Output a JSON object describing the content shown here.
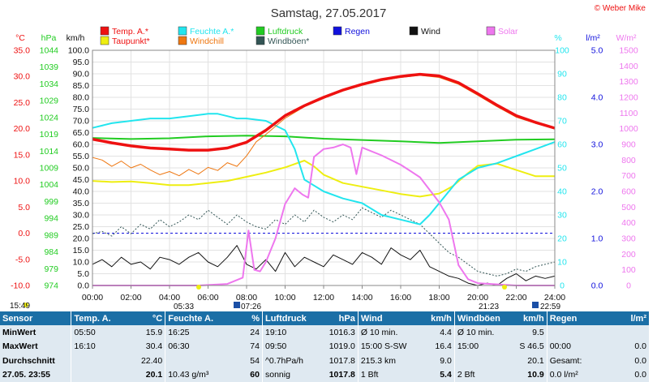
{
  "header": {
    "title": "Samstag, 27.05.2017",
    "credit": "© Weber Mike"
  },
  "legend": [
    {
      "label": "Temp. A.*",
      "color": "#ee1111"
    },
    {
      "label": "Feuchte A.*",
      "color": "#22e5ee"
    },
    {
      "label": "Luftdruck",
      "color": "#22cc22"
    },
    {
      "label": "Regen",
      "color": "#1111dd"
    },
    {
      "label": "Wind",
      "color": "#111111"
    },
    {
      "label": "Solar",
      "color": "#ee77ee"
    },
    {
      "label": "Taupunkt*",
      "color": "#eeee11"
    },
    {
      "label": "Windchill",
      "color": "#ee7711"
    },
    {
      "label": "Windböen*",
      "color": "#335555"
    }
  ],
  "axis_units": {
    "temp": "°C",
    "pressure": "hPa",
    "speed": "km/h",
    "humidity": "%",
    "rain": "l/m²",
    "solar": "W/m²"
  },
  "sun": {
    "sunrise_time": "05:33",
    "sunset_time": "21:23",
    "moonrise_time": "07:26",
    "moonset_time": "22:59",
    "daylight_start": "15:49"
  },
  "chart_data": {
    "type": "line",
    "x_ticks": [
      "00:00",
      "02:00",
      "04:00",
      "06:00",
      "08:00",
      "10:00",
      "12:00",
      "14:00",
      "16:00",
      "18:00",
      "20:00",
      "22:00",
      "24:00"
    ],
    "axes": {
      "temp": {
        "label": "°C",
        "range": [
          -10,
          35
        ],
        "ticks": [
          "35.0",
          "30.0",
          "25.0",
          "20.0",
          "15.0",
          "10.0",
          "5.0",
          "0.0",
          "-5.0",
          "-10.0"
        ]
      },
      "pressure": {
        "label": "hPa",
        "range": [
          974,
          1044
        ],
        "ticks": [
          "1044",
          "1039",
          "1034",
          "1029",
          "1024",
          "1019",
          "1014",
          "1009",
          "1004",
          "999",
          "994",
          "989",
          "984",
          "979",
          "974"
        ]
      },
      "speed": {
        "label": "km/h",
        "range": [
          0,
          100
        ],
        "ticks": [
          "100.0",
          "95.0",
          "90.0",
          "85.0",
          "80.0",
          "75.0",
          "70.0",
          "65.0",
          "60.0",
          "55.0",
          "50.0",
          "45.0",
          "40.0",
          "35.0",
          "30.0",
          "25.0",
          "20.0",
          "15.0",
          "10.0",
          "5.0",
          "0.0"
        ]
      },
      "humidity": {
        "label": "%",
        "range": [
          0,
          100
        ],
        "ticks": [
          "100",
          "90",
          "80",
          "70",
          "60",
          "50",
          "40",
          "30",
          "20",
          "10",
          "0"
        ]
      },
      "rain": {
        "label": "l/m²",
        "range": [
          0,
          5
        ],
        "ticks": [
          "5.0",
          "4.0",
          "3.0",
          "2.0",
          "1.0",
          "0.0"
        ]
      },
      "solar": {
        "label": "W/m²",
        "range": [
          0,
          1500
        ],
        "ticks": [
          "1500",
          "1400",
          "1300",
          "1200",
          "1100",
          "1000",
          "900",
          "800",
          "700",
          "600",
          "500",
          "400",
          "300",
          "200",
          "100",
          "0"
        ]
      }
    },
    "grid": true,
    "series": [
      {
        "name": "Temp. A.*",
        "axis": "temp",
        "color": "#ee1111",
        "width": 3.5,
        "x": [
          0,
          1,
          2,
          3,
          4,
          5,
          6,
          7,
          8,
          9,
          10,
          11,
          12,
          13,
          14,
          15,
          16,
          17,
          18,
          19,
          20,
          21,
          22,
          23,
          24
        ],
        "values": [
          18.0,
          17.3,
          16.7,
          16.3,
          16.1,
          15.9,
          15.9,
          16.3,
          17.4,
          19.7,
          22.5,
          24.4,
          26.0,
          27.4,
          28.5,
          29.4,
          30.0,
          30.4,
          30.1,
          28.8,
          26.7,
          24.5,
          22.5,
          21.2,
          20.1
        ]
      },
      {
        "name": "Windchill",
        "axis": "temp",
        "color": "#ee7711",
        "width": 1,
        "x": [
          0,
          0.5,
          1,
          1.5,
          2,
          2.5,
          3,
          3.5,
          4,
          4.5,
          5,
          5.5,
          6,
          6.5,
          7,
          7.5,
          8,
          8.5,
          9,
          10,
          11,
          12,
          13,
          14,
          15,
          16,
          17,
          18,
          19,
          20,
          21,
          22,
          23,
          24
        ],
        "values": [
          14.5,
          14.0,
          12.8,
          13.8,
          12.5,
          13.2,
          12.1,
          11.2,
          11.8,
          11.0,
          12.2,
          11.3,
          12.6,
          12.0,
          13.5,
          12.8,
          14.8,
          17.5,
          18.9,
          22.0,
          24.2,
          25.8,
          27.2,
          28.3,
          29.2,
          29.8,
          30.2,
          29.8,
          28.5,
          26.4,
          24.2,
          22.2,
          21.0,
          20.0
        ]
      },
      {
        "name": "Taupunkt*",
        "axis": "temp",
        "color": "#eeee11",
        "width": 2,
        "x": [
          0,
          1,
          2,
          3,
          4,
          5,
          6,
          7,
          8,
          9,
          10,
          11,
          11.5,
          12,
          13,
          14,
          15,
          16,
          17,
          18,
          18.7,
          19.5,
          20,
          21,
          22,
          23,
          24
        ],
        "values": [
          10.0,
          9.8,
          9.9,
          9.6,
          9.2,
          9.2,
          9.6,
          10.0,
          10.8,
          11.6,
          12.6,
          13.9,
          12.8,
          11.2,
          9.6,
          8.9,
          8.2,
          7.5,
          7.0,
          7.6,
          9.0,
          11.5,
          12.9,
          13.3,
          12.1,
          10.9,
          10.9
        ]
      },
      {
        "name": "Feuchte A.*",
        "axis": "humidity",
        "color": "#22e5ee",
        "width": 2,
        "x": [
          0,
          1,
          2,
          3,
          4,
          5,
          6,
          6.5,
          7,
          7.5,
          8,
          9,
          10,
          10.5,
          11,
          12,
          13,
          14,
          15,
          16,
          17,
          17.5,
          18,
          18.5,
          19,
          20,
          21,
          22,
          23,
          24
        ],
        "values": [
          67,
          69,
          70,
          71,
          71,
          72,
          73,
          73,
          72,
          71,
          71,
          70,
          66,
          58,
          45,
          40,
          37,
          35,
          30,
          28,
          26,
          30,
          35,
          40,
          45,
          50,
          52,
          55,
          58,
          61
        ]
      },
      {
        "name": "Luftdruck",
        "axis": "pressure",
        "color": "#22cc22",
        "width": 2,
        "x": [
          0,
          2,
          4,
          6,
          8,
          10,
          12,
          14,
          16,
          18,
          20,
          22,
          24
        ],
        "values": [
          1017.9,
          1017.6,
          1017.8,
          1018.4,
          1018.6,
          1018.4,
          1017.7,
          1017.3,
          1016.9,
          1016.4,
          1016.9,
          1017.4,
          1017.5
        ]
      },
      {
        "name": "Solar",
        "axis": "solar",
        "color": "#ee77ee",
        "width": 2,
        "x": [
          0,
          5.5,
          7,
          7.8,
          8.1,
          8.4,
          8.7,
          9,
          9.5,
          10,
          10.5,
          10.9,
          11.2,
          11.5,
          12,
          12.5,
          13,
          13.4,
          13.7,
          14,
          15,
          16,
          17,
          18,
          18.5,
          19,
          19.5,
          20,
          22,
          24
        ],
        "values": [
          0,
          0,
          10,
          50,
          350,
          100,
          90,
          150,
          300,
          520,
          620,
          580,
          560,
          820,
          870,
          880,
          900,
          880,
          710,
          880,
          830,
          770,
          690,
          530,
          420,
          130,
          40,
          15,
          0,
          0
        ]
      },
      {
        "name": "Wind",
        "axis": "speed",
        "color": "#111111",
        "width": 1,
        "x": [
          0,
          0.5,
          1,
          1.5,
          2,
          2.5,
          3,
          3.5,
          4,
          4.5,
          5,
          5.5,
          6,
          6.5,
          7,
          7.5,
          8,
          8.5,
          9,
          9.5,
          10,
          10.5,
          11,
          11.5,
          12,
          12.5,
          13,
          13.5,
          14,
          14.5,
          15,
          15.5,
          16,
          16.5,
          17,
          17.5,
          18,
          18.5,
          19,
          19.5,
          20,
          20.5,
          21,
          21.5,
          22,
          22.5,
          23,
          23.5,
          24
        ],
        "values": [
          9,
          11,
          8,
          12,
          9,
          10,
          7,
          12,
          11,
          9,
          12,
          14,
          10,
          8,
          12,
          17,
          9,
          7,
          11,
          6,
          14,
          8,
          12,
          10,
          8,
          13,
          11,
          9,
          14,
          12,
          9,
          16,
          13,
          11,
          15,
          8,
          6,
          4,
          3,
          1,
          0,
          1,
          0,
          3,
          5,
          2,
          4,
          3,
          4
        ]
      },
      {
        "name": "Windböen*",
        "axis": "speed",
        "color": "#335555",
        "width": 1,
        "dash": "2,2",
        "x": [
          0,
          0.5,
          1,
          1.5,
          2,
          2.5,
          3,
          3.5,
          4,
          4.5,
          5,
          5.5,
          6,
          6.5,
          7,
          7.5,
          8,
          8.5,
          9,
          9.5,
          10,
          10.5,
          11,
          11.5,
          12,
          12.5,
          13,
          13.5,
          14,
          14.5,
          15,
          15.5,
          16,
          16.5,
          17,
          17.5,
          18,
          18.5,
          19,
          19.5,
          20,
          20.5,
          21,
          21.5,
          22,
          22.5,
          23,
          23.5,
          24
        ],
        "values": [
          22,
          23,
          21,
          25,
          22,
          26,
          24,
          28,
          25,
          27,
          30,
          28,
          32,
          29,
          26,
          30,
          27,
          25,
          24,
          28,
          26,
          30,
          27,
          32,
          29,
          27,
          30,
          28,
          33,
          31,
          29,
          32,
          30,
          28,
          26,
          22,
          18,
          14,
          12,
          9,
          6,
          5,
          4,
          5,
          7,
          6,
          8,
          9,
          10
        ]
      }
    ],
    "reference_lines": [
      {
        "axis": "temp",
        "value": 0,
        "color": "#1111dd",
        "dash": "3,3"
      }
    ]
  },
  "stats": {
    "headers": [
      "Sensor",
      "Temp. A.",
      "°C",
      "Feuchte A.",
      "%",
      "Luftdruck",
      "hPa",
      "Wind",
      "km/h",
      "Windböen",
      "km/h",
      "Regen",
      "l/m²"
    ],
    "rows": [
      [
        "MinWert",
        "05:50",
        "15.9",
        "16:25",
        "24",
        "19:10",
        "1016.3",
        "Ø 10 min.",
        "4.4",
        "Ø 10 min.",
        "9.5",
        "",
        ""
      ],
      [
        "MaxWert",
        "16:10",
        "30.4",
        "06:30",
        "74",
        "09:50",
        "1019.0",
        "15:00    S-SW",
        "16.4",
        "15:00",
        "S 46.5",
        "00:00",
        "0.0"
      ],
      [
        "Durchschnitt",
        "",
        "22.40",
        "",
        "54",
        "^0.7hPa/h",
        "1017.8",
        "215.3 km",
        "9.0",
        "",
        "20.1",
        "Gesamt:",
        "0.0"
      ],
      [
        "27.05. 23:55",
        "",
        "20.1",
        "10.43 g/m³",
        "60",
        "sonnig",
        "1017.8",
        "1 Bft",
        "5.4",
        "2 Bft",
        "10.9",
        "0.0 l/m²",
        "0.0"
      ]
    ]
  }
}
